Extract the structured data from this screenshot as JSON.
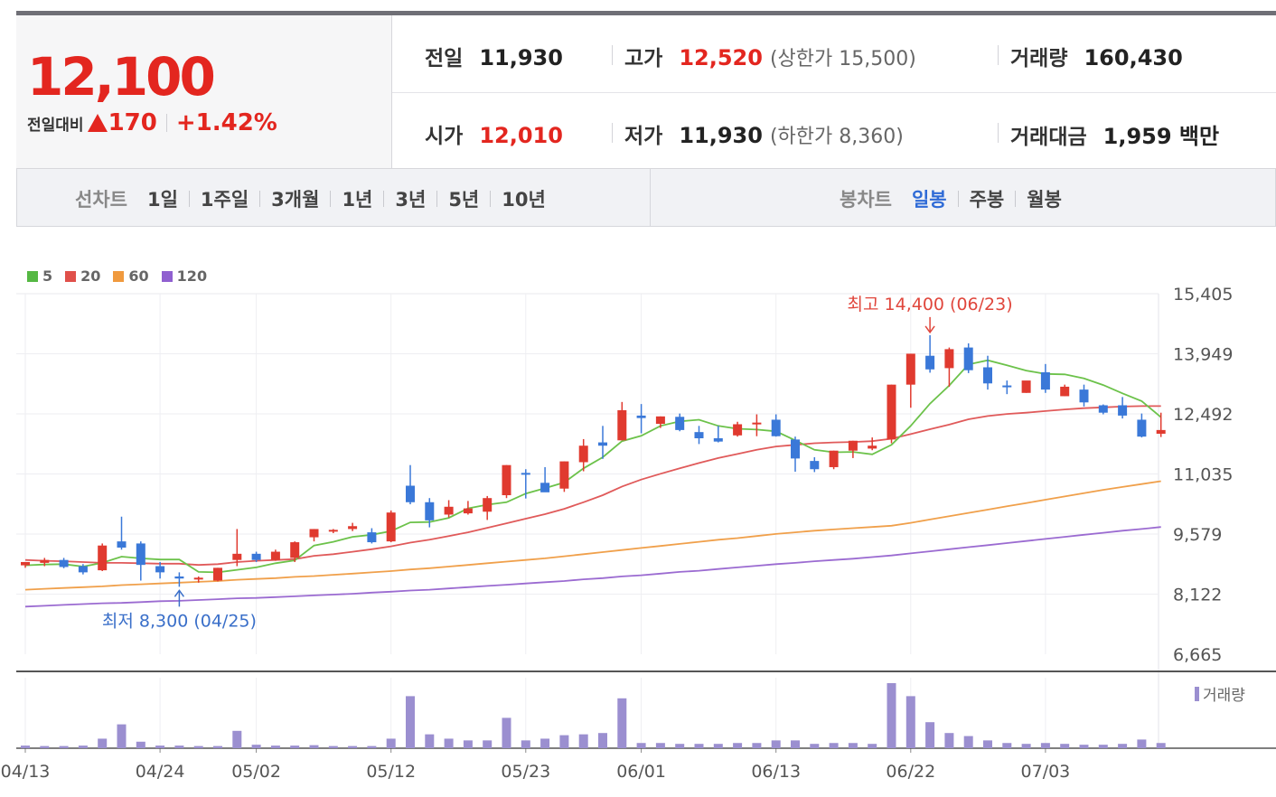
{
  "header": {
    "price": "12,100",
    "change_label": "전일대비",
    "change_value": "170",
    "change_pct": "+1.42%"
  },
  "info": {
    "prev_close_label": "전일",
    "prev_close": "11,930",
    "high_label": "고가",
    "high": "12,520",
    "upper_limit_text": "(상한가 15,500)",
    "volume_label": "거래량",
    "volume": "160,430",
    "open_label": "시가",
    "open": "12,010",
    "low_label": "저가",
    "low": "11,930",
    "lower_limit_text": "(하한가 8,360)",
    "amount_label": "거래대금",
    "amount": "1,959 백만"
  },
  "periods": {
    "line_chart_label": "선차트",
    "line_items": [
      "1일",
      "1주일",
      "3개월",
      "1년",
      "3년",
      "5년",
      "10년"
    ],
    "candle_chart_label": "봉차트",
    "candle_items": [
      "일봉",
      "주봉",
      "월봉"
    ],
    "active_candle": "일봉"
  },
  "colors": {
    "up": "#e03a2f",
    "down": "#3a78d8",
    "ma5": "#6cc24a",
    "ma20": "#e05a5a",
    "ma60": "#f0a04b",
    "ma120": "#9b6bd1",
    "volume": "#9b8fd0"
  },
  "chart_data": {
    "type": "candlestick",
    "legend": [
      {
        "name": "5",
        "color": "#55b843"
      },
      {
        "name": "20",
        "color": "#e0504a"
      },
      {
        "name": "60",
        "color": "#f09a3e"
      },
      {
        "name": "120",
        "color": "#9060d0"
      }
    ],
    "y_ticks": [
      "15,405",
      "13,949",
      "12,492",
      "11,035",
      "9,579",
      "8,122",
      "6,665"
    ],
    "ylim": [
      6665,
      15405
    ],
    "x_ticks": [
      {
        "index": 0,
        "label": "04/13"
      },
      {
        "index": 7,
        "label": "04/24"
      },
      {
        "index": 12,
        "label": "05/02"
      },
      {
        "index": 19,
        "label": "05/12"
      },
      {
        "index": 26,
        "label": "05/23"
      },
      {
        "index": 32,
        "label": "06/01"
      },
      {
        "index": 39,
        "label": "06/13"
      },
      {
        "index": 46,
        "label": "06/22"
      },
      {
        "index": 53,
        "label": "07/03"
      }
    ],
    "annotations": {
      "high_text": "최고 14,400 (06/23)",
      "high_index": 47,
      "high_value": 14400,
      "low_text": "최저 8,300 (04/25)",
      "low_index": 8,
      "low_value": 8300
    },
    "volume_legend": "거래량",
    "candles": [
      {
        "o": 8820,
        "h": 8900,
        "l": 8760,
        "c": 8900,
        "v": 6
      },
      {
        "o": 8880,
        "h": 9000,
        "l": 8800,
        "c": 8950,
        "v": 5
      },
      {
        "o": 8950,
        "h": 9000,
        "l": 8750,
        "c": 8780,
        "v": 5
      },
      {
        "o": 8800,
        "h": 8850,
        "l": 8600,
        "c": 8650,
        "v": 6
      },
      {
        "o": 8700,
        "h": 9350,
        "l": 8680,
        "c": 9300,
        "v": 22
      },
      {
        "o": 9400,
        "h": 10000,
        "l": 9200,
        "c": 9250,
        "v": 55
      },
      {
        "o": 9350,
        "h": 9400,
        "l": 8450,
        "c": 8830,
        "v": 15
      },
      {
        "o": 8800,
        "h": 8900,
        "l": 8500,
        "c": 8650,
        "v": 6
      },
      {
        "o": 8550,
        "h": 8650,
        "l": 8300,
        "c": 8500,
        "v": 6
      },
      {
        "o": 8500,
        "h": 8550,
        "l": 8400,
        "c": 8520,
        "v": 5
      },
      {
        "o": 8450,
        "h": 8760,
        "l": 8430,
        "c": 8760,
        "v": 5
      },
      {
        "o": 8950,
        "h": 9700,
        "l": 8800,
        "c": 9100,
        "v": 40
      },
      {
        "o": 9100,
        "h": 9150,
        "l": 8900,
        "c": 8950,
        "v": 8
      },
      {
        "o": 8950,
        "h": 9200,
        "l": 8930,
        "c": 9150,
        "v": 6
      },
      {
        "o": 9000,
        "h": 9400,
        "l": 8900,
        "c": 9380,
        "v": 6
      },
      {
        "o": 9500,
        "h": 9700,
        "l": 9400,
        "c": 9700,
        "v": 7
      },
      {
        "o": 9650,
        "h": 9700,
        "l": 9600,
        "c": 9680,
        "v": 5
      },
      {
        "o": 9700,
        "h": 9850,
        "l": 9650,
        "c": 9770,
        "v": 5
      },
      {
        "o": 9620,
        "h": 9720,
        "l": 9350,
        "c": 9380,
        "v": 5
      },
      {
        "o": 9400,
        "h": 10150,
        "l": 9380,
        "c": 10100,
        "v": 22
      },
      {
        "o": 10750,
        "h": 11250,
        "l": 10300,
        "c": 10350,
        "v": 120
      },
      {
        "o": 10350,
        "h": 10450,
        "l": 9740,
        "c": 9910,
        "v": 32
      },
      {
        "o": 10050,
        "h": 10400,
        "l": 9980,
        "c": 10240,
        "v": 22
      },
      {
        "o": 10080,
        "h": 10380,
        "l": 10050,
        "c": 10200,
        "v": 18
      },
      {
        "o": 10120,
        "h": 10500,
        "l": 9920,
        "c": 10450,
        "v": 18
      },
      {
        "o": 10520,
        "h": 11250,
        "l": 10450,
        "c": 11250,
        "v": 70
      },
      {
        "o": 11060,
        "h": 11150,
        "l": 10440,
        "c": 11030,
        "v": 18
      },
      {
        "o": 10820,
        "h": 11200,
        "l": 10600,
        "c": 10590,
        "v": 22
      },
      {
        "o": 10680,
        "h": 11340,
        "l": 10600,
        "c": 11340,
        "v": 30
      },
      {
        "o": 11320,
        "h": 11880,
        "l": 11100,
        "c": 11720,
        "v": 32
      },
      {
        "o": 11800,
        "h": 12200,
        "l": 11400,
        "c": 11720,
        "v": 35
      },
      {
        "o": 11850,
        "h": 12780,
        "l": 11850,
        "c": 12580,
        "v": 115
      },
      {
        "o": 12450,
        "h": 12730,
        "l": 12020,
        "c": 12390,
        "v": 12
      },
      {
        "o": 12250,
        "h": 12430,
        "l": 12150,
        "c": 12430,
        "v": 12
      },
      {
        "o": 12420,
        "h": 12500,
        "l": 12070,
        "c": 12100,
        "v": 10
      },
      {
        "o": 12050,
        "h": 12200,
        "l": 11760,
        "c": 11900,
        "v": 10
      },
      {
        "o": 11900,
        "h": 12200,
        "l": 11800,
        "c": 11820,
        "v": 10
      },
      {
        "o": 11970,
        "h": 12300,
        "l": 11940,
        "c": 12240,
        "v": 12
      },
      {
        "o": 12280,
        "h": 12480,
        "l": 11950,
        "c": 12280,
        "v": 12
      },
      {
        "o": 12350,
        "h": 12480,
        "l": 11940,
        "c": 11950,
        "v": 18
      },
      {
        "o": 11870,
        "h": 11940,
        "l": 11090,
        "c": 11410,
        "v": 18
      },
      {
        "o": 11350,
        "h": 11440,
        "l": 11080,
        "c": 11150,
        "v": 10
      },
      {
        "o": 11200,
        "h": 11600,
        "l": 11150,
        "c": 11600,
        "v": 12
      },
      {
        "o": 11600,
        "h": 11840,
        "l": 11420,
        "c": 11840,
        "v": 12
      },
      {
        "o": 11650,
        "h": 11920,
        "l": 11610,
        "c": 11720,
        "v": 10
      },
      {
        "o": 11870,
        "h": 13200,
        "l": 11780,
        "c": 13200,
        "v": 150
      },
      {
        "o": 13200,
        "h": 13950,
        "l": 12640,
        "c": 13950,
        "v": 120
      },
      {
        "o": 13900,
        "h": 14400,
        "l": 13490,
        "c": 13570,
        "v": 60
      },
      {
        "o": 13600,
        "h": 14100,
        "l": 13150,
        "c": 14060,
        "v": 35
      },
      {
        "o": 14100,
        "h": 14200,
        "l": 13480,
        "c": 13550,
        "v": 28
      },
      {
        "o": 13620,
        "h": 13900,
        "l": 13080,
        "c": 13230,
        "v": 18
      },
      {
        "o": 13180,
        "h": 13300,
        "l": 12970,
        "c": 13140,
        "v": 12
      },
      {
        "o": 13000,
        "h": 13280,
        "l": 13000,
        "c": 13300,
        "v": 10
      },
      {
        "o": 13500,
        "h": 13700,
        "l": 13000,
        "c": 13080,
        "v": 12
      },
      {
        "o": 12920,
        "h": 13200,
        "l": 12920,
        "c": 13150,
        "v": 10
      },
      {
        "o": 13080,
        "h": 13200,
        "l": 12670,
        "c": 12770,
        "v": 8
      },
      {
        "o": 12700,
        "h": 12720,
        "l": 12480,
        "c": 12520,
        "v": 8
      },
      {
        "o": 12700,
        "h": 12900,
        "l": 12380,
        "c": 12450,
        "v": 10
      },
      {
        "o": 12350,
        "h": 12500,
        "l": 11920,
        "c": 11940,
        "v": 20
      },
      {
        "o": 12010,
        "h": 12520,
        "l": 11930,
        "c": 12100,
        "v": 12
      }
    ],
    "ma5": [
      8820,
      8840,
      8850,
      8790,
      8880,
      9030,
      8990,
      8960,
      8960,
      8660,
      8650,
      8710,
      8770,
      8870,
      8940,
      9300,
      9390,
      9510,
      9560,
      9650,
      9860,
      9870,
      9970,
      10200,
      10290,
      10350,
      10560,
      10690,
      10830,
      11170,
      11440,
      11830,
      11960,
      12200,
      12310,
      12350,
      12200,
      12130,
      12110,
      12070,
      11850,
      11620,
      11560,
      11570,
      11510,
      11740,
      12200,
      12740,
      13180,
      13690,
      13790,
      13670,
      13540,
      13460,
      13450,
      13350,
      13190,
      12990,
      12800,
      12410
    ],
    "ma20": [
      8950,
      8930,
      8920,
      8900,
      8880,
      8880,
      8870,
      8860,
      8860,
      8830,
      8850,
      8900,
      8930,
      8950,
      8970,
      9050,
      9090,
      9150,
      9210,
      9280,
      9370,
      9440,
      9530,
      9620,
      9730,
      9840,
      9950,
      10060,
      10190,
      10350,
      10520,
      10730,
      10900,
      11040,
      11170,
      11300,
      11420,
      11520,
      11620,
      11700,
      11740,
      11780,
      11800,
      11810,
      11830,
      11890,
      12000,
      12120,
      12230,
      12360,
      12440,
      12490,
      12520,
      12560,
      12600,
      12630,
      12650,
      12670,
      12680,
      12680
    ],
    "ma60": [
      8230,
      8250,
      8270,
      8290,
      8310,
      8340,
      8360,
      8380,
      8400,
      8420,
      8440,
      8470,
      8490,
      8510,
      8540,
      8560,
      8590,
      8620,
      8650,
      8680,
      8720,
      8750,
      8790,
      8830,
      8870,
      8910,
      8950,
      8990,
      9040,
      9090,
      9140,
      9190,
      9240,
      9290,
      9340,
      9390,
      9440,
      9480,
      9530,
      9580,
      9620,
      9660,
      9690,
      9720,
      9750,
      9780,
      9850,
      9930,
      10010,
      10090,
      10170,
      10250,
      10330,
      10410,
      10490,
      10570,
      10650,
      10720,
      10790,
      10860
    ],
    "ma120": [
      7820,
      7840,
      7860,
      7880,
      7900,
      7910,
      7930,
      7950,
      7960,
      7980,
      8000,
      8020,
      8030,
      8050,
      8070,
      8090,
      8110,
      8130,
      8160,
      8180,
      8210,
      8230,
      8260,
      8290,
      8320,
      8350,
      8380,
      8410,
      8440,
      8480,
      8510,
      8550,
      8580,
      8620,
      8660,
      8690,
      8730,
      8770,
      8810,
      8850,
      8880,
      8920,
      8950,
      8980,
      9020,
      9060,
      9110,
      9160,
      9210,
      9260,
      9310,
      9360,
      9410,
      9460,
      9510,
      9560,
      9610,
      9660,
      9700,
      9750
    ]
  }
}
